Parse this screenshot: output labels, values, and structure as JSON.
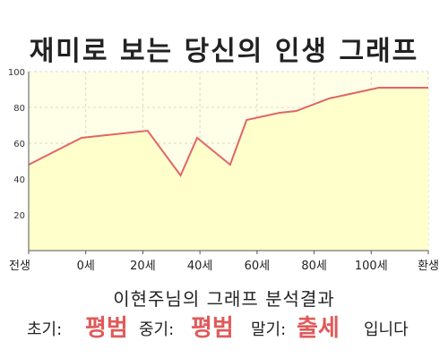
{
  "chart_data": {
    "type": "area",
    "title": "재미로 보는 당신의 인생 그래프",
    "x_tick_labels": [
      "전생",
      "0세",
      "20세",
      "40세",
      "60세",
      "80세",
      "100세",
      "환생"
    ],
    "y_ticks": [
      20,
      40,
      60,
      80,
      100
    ],
    "ylim": [
      0,
      100
    ],
    "x": [
      -16,
      0,
      20,
      30,
      35,
      45,
      50,
      60,
      65,
      75,
      90,
      105
    ],
    "y": [
      48,
      63,
      67,
      42,
      63,
      48,
      73,
      77,
      78,
      85,
      91,
      91
    ],
    "line_color": "#e06666",
    "fill_color": "#ffffcc",
    "grid": true
  },
  "result": {
    "heading": "이현주님의 그래프 분석결과",
    "early_label": "초기:",
    "early_value": "평범",
    "middle_label": "중기:",
    "middle_value": "평범",
    "late_label": "말기:",
    "late_value": "출세",
    "suffix": "입니다"
  }
}
